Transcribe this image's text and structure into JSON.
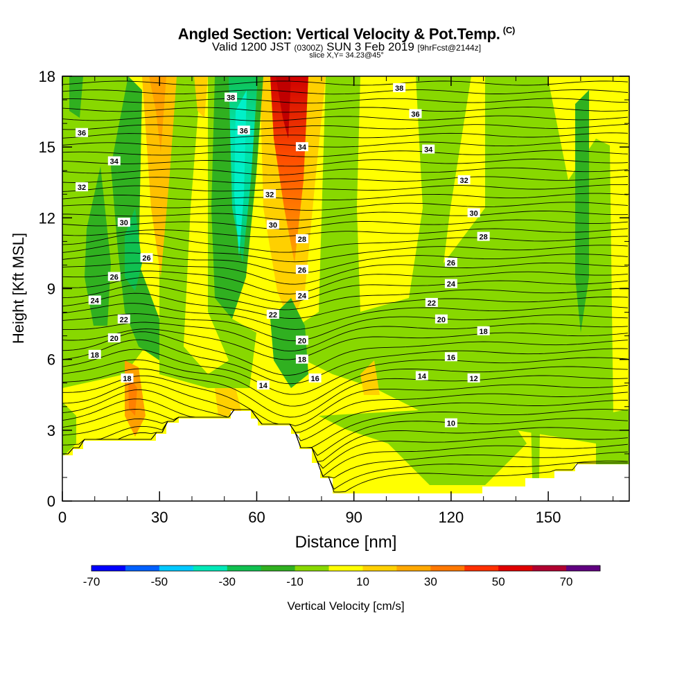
{
  "header": {
    "title": "Angled Section: Vertical Velocity & Pot.Temp.",
    "title_units": "(C)",
    "valid_prefix": "Valid 1200 JST",
    "valid_utc": "(0300Z)",
    "valid_date": "SUN 3 Feb 2019",
    "forecast": "[9hrFcst@2144z]",
    "slice": "slice X,Y= 34.23@45°"
  },
  "colorbar": {
    "label": "Vertical Velocity [cm/s]",
    "ticks": [
      "-70",
      "-50",
      "-30",
      "-10",
      "10",
      "30",
      "50",
      "70"
    ],
    "colors": [
      "#0000ff",
      "#0060ff",
      "#00c8ff",
      "#00e8b8",
      "#10c050",
      "#30b020",
      "#88d800",
      "#ffff00",
      "#ffd000",
      "#ffa800",
      "#ff7800",
      "#ff3000",
      "#e00000",
      "#b00030",
      "#600080"
    ]
  },
  "chart_data": {
    "type": "heatmap",
    "xlabel": "Distance [nm]",
    "ylabel": "Height [Kft MSL]",
    "xlim": [
      0,
      175
    ],
    "ylim": [
      0,
      18
    ],
    "xticks": [
      "0",
      "30",
      "60",
      "90",
      "120",
      "150"
    ],
    "yticks": [
      "0",
      "3",
      "6",
      "9",
      "12",
      "15",
      "18"
    ],
    "contour_variable": "Potential temperature (C)",
    "contour_labels": [
      {
        "text": "38",
        "x": 104,
        "y": 17.5
      },
      {
        "text": "38",
        "x": 52,
        "y": 17.1
      },
      {
        "text": "36",
        "x": 109,
        "y": 16.4
      },
      {
        "text": "36",
        "x": 56,
        "y": 15.7
      },
      {
        "text": "36",
        "x": 6,
        "y": 15.6
      },
      {
        "text": "34",
        "x": 74,
        "y": 15.0
      },
      {
        "text": "34",
        "x": 113,
        "y": 14.9
      },
      {
        "text": "34",
        "x": 16,
        "y": 14.4
      },
      {
        "text": "32",
        "x": 124,
        "y": 13.6
      },
      {
        "text": "32",
        "x": 6,
        "y": 13.3
      },
      {
        "text": "32",
        "x": 64,
        "y": 13.0
      },
      {
        "text": "30",
        "x": 127,
        "y": 12.2
      },
      {
        "text": "30",
        "x": 19,
        "y": 11.8
      },
      {
        "text": "30",
        "x": 65,
        "y": 11.7
      },
      {
        "text": "28",
        "x": 130,
        "y": 11.2
      },
      {
        "text": "28",
        "x": 74,
        "y": 11.1
      },
      {
        "text": "26",
        "x": 26,
        "y": 10.3
      },
      {
        "text": "26",
        "x": 120,
        "y": 10.1
      },
      {
        "text": "26",
        "x": 74,
        "y": 9.8
      },
      {
        "text": "26",
        "x": 16,
        "y": 9.5
      },
      {
        "text": "24",
        "x": 120,
        "y": 9.2
      },
      {
        "text": "24",
        "x": 74,
        "y": 8.7
      },
      {
        "text": "24",
        "x": 10,
        "y": 8.5
      },
      {
        "text": "22",
        "x": 114,
        "y": 8.4
      },
      {
        "text": "22",
        "x": 65,
        "y": 7.9
      },
      {
        "text": "22",
        "x": 19,
        "y": 7.7
      },
      {
        "text": "20",
        "x": 117,
        "y": 7.7
      },
      {
        "text": "20",
        "x": 16,
        "y": 6.9
      },
      {
        "text": "20",
        "x": 74,
        "y": 6.8
      },
      {
        "text": "18",
        "x": 130,
        "y": 7.2
      },
      {
        "text": "18",
        "x": 10,
        "y": 6.2
      },
      {
        "text": "18",
        "x": 74,
        "y": 6.0
      },
      {
        "text": "18",
        "x": 20,
        "y": 5.2
      },
      {
        "text": "16",
        "x": 120,
        "y": 6.1
      },
      {
        "text": "16",
        "x": 78,
        "y": 5.2
      },
      {
        "text": "14",
        "x": 111,
        "y": 5.3
      },
      {
        "text": "14",
        "x": 62,
        "y": 4.9
      },
      {
        "text": "12",
        "x": 127,
        "y": 5.2
      },
      {
        "text": "10",
        "x": 120,
        "y": 3.3
      }
    ]
  }
}
